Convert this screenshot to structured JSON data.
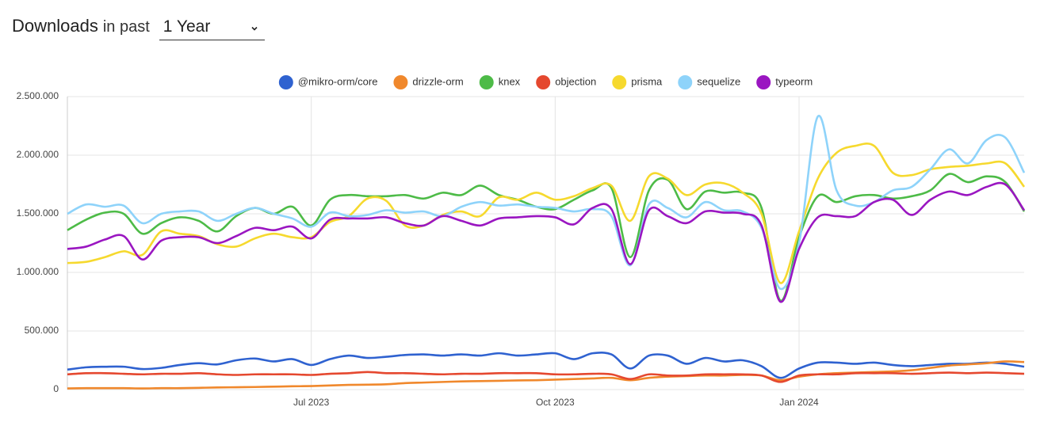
{
  "header": {
    "title": "Downloads",
    "subtitle": "in past",
    "select": "1 Year"
  },
  "chart_data": {
    "type": "line",
    "categories": [
      null,
      null,
      null,
      null,
      null,
      null,
      null,
      null,
      null,
      null,
      null,
      null,
      null,
      "Jul 2023",
      null,
      null,
      null,
      null,
      null,
      null,
      null,
      null,
      null,
      null,
      null,
      null,
      "Oct 2023",
      null,
      null,
      null,
      null,
      null,
      null,
      null,
      null,
      null,
      null,
      null,
      null,
      "Jan 2024",
      null,
      null,
      null,
      null,
      null,
      null,
      null,
      null,
      null,
      null,
      null,
      null
    ],
    "ylim": [
      0,
      2500000
    ],
    "yticks": [
      0,
      {
        "value": 500000,
        "label": "500.000"
      },
      {
        "value": 1000000,
        "label": "1.000.000"
      },
      {
        "value": 1500000,
        "label": "1.500.000"
      },
      {
        "value": 2000000,
        "label": "2.000.000"
      },
      {
        "value": 2500000,
        "label": "2.500.000"
      }
    ],
    "grid": true,
    "legend": "top",
    "series": [
      {
        "name": "@mikro-orm/core",
        "color": "#2f62d0",
        "values": [
          170000,
          190000,
          195000,
          195000,
          175000,
          185000,
          210000,
          225000,
          215000,
          250000,
          265000,
          240000,
          260000,
          210000,
          260000,
          290000,
          270000,
          280000,
          295000,
          300000,
          290000,
          300000,
          290000,
          310000,
          290000,
          300000,
          310000,
          260000,
          310000,
          300000,
          180000,
          290000,
          290000,
          220000,
          270000,
          240000,
          250000,
          200000,
          100000,
          180000,
          230000,
          230000,
          220000,
          230000,
          210000,
          200000,
          210000,
          220000,
          220000,
          230000,
          220000,
          195000
        ]
      },
      {
        "name": "drizzle-orm",
        "color": "#f0882c",
        "values": [
          10000,
          12000,
          12000,
          12000,
          10000,
          12000,
          12000,
          15000,
          18000,
          20000,
          22000,
          25000,
          28000,
          30000,
          35000,
          40000,
          42000,
          45000,
          55000,
          60000,
          65000,
          70000,
          72000,
          75000,
          78000,
          80000,
          85000,
          90000,
          95000,
          100000,
          80000,
          100000,
          110000,
          115000,
          120000,
          120000,
          125000,
          120000,
          80000,
          110000,
          130000,
          140000,
          145000,
          150000,
          155000,
          165000,
          185000,
          205000,
          215000,
          225000,
          240000,
          235000
        ]
      },
      {
        "name": "knex",
        "color": "#4dbb47",
        "values": [
          1360000,
          1450000,
          1510000,
          1500000,
          1330000,
          1420000,
          1470000,
          1440000,
          1350000,
          1480000,
          1550000,
          1500000,
          1560000,
          1400000,
          1620000,
          1660000,
          1650000,
          1650000,
          1660000,
          1630000,
          1680000,
          1660000,
          1740000,
          1660000,
          1620000,
          1560000,
          1540000,
          1620000,
          1700000,
          1720000,
          1130000,
          1700000,
          1790000,
          1540000,
          1690000,
          1680000,
          1680000,
          1550000,
          760000,
          1300000,
          1650000,
          1600000,
          1650000,
          1660000,
          1630000,
          1650000,
          1700000,
          1840000,
          1770000,
          1820000,
          1770000,
          1520000
        ]
      },
      {
        "name": "objection",
        "color": "#e5482f",
        "values": [
          130000,
          140000,
          140000,
          135000,
          130000,
          135000,
          135000,
          140000,
          130000,
          125000,
          130000,
          130000,
          130000,
          125000,
          135000,
          140000,
          150000,
          140000,
          140000,
          135000,
          130000,
          135000,
          135000,
          140000,
          140000,
          140000,
          130000,
          130000,
          135000,
          130000,
          90000,
          130000,
          120000,
          120000,
          130000,
          130000,
          130000,
          120000,
          65000,
          120000,
          130000,
          130000,
          140000,
          140000,
          140000,
          135000,
          140000,
          145000,
          140000,
          145000,
          140000,
          135000
        ]
      },
      {
        "name": "prisma",
        "color": "#f6d92e",
        "values": [
          1080000,
          1090000,
          1130000,
          1180000,
          1150000,
          1350000,
          1330000,
          1310000,
          1240000,
          1220000,
          1290000,
          1330000,
          1300000,
          1300000,
          1430000,
          1480000,
          1630000,
          1610000,
          1400000,
          1400000,
          1490000,
          1520000,
          1480000,
          1640000,
          1620000,
          1680000,
          1620000,
          1650000,
          1720000,
          1740000,
          1440000,
          1820000,
          1800000,
          1660000,
          1750000,
          1760000,
          1680000,
          1500000,
          910000,
          1350000,
          1800000,
          2020000,
          2080000,
          2080000,
          1850000,
          1830000,
          1880000,
          1900000,
          1910000,
          1930000,
          1930000,
          1730000
        ]
      },
      {
        "name": "sequelize",
        "color": "#8ed3fa",
        "values": [
          1500000,
          1580000,
          1560000,
          1570000,
          1420000,
          1500000,
          1520000,
          1520000,
          1440000,
          1500000,
          1550000,
          1500000,
          1460000,
          1390000,
          1510000,
          1480000,
          1490000,
          1530000,
          1510000,
          1520000,
          1480000,
          1560000,
          1600000,
          1570000,
          1580000,
          1560000,
          1550000,
          1520000,
          1540000,
          1480000,
          1060000,
          1580000,
          1550000,
          1470000,
          1600000,
          1530000,
          1520000,
          1380000,
          860000,
          1250000,
          2330000,
          1700000,
          1570000,
          1600000,
          1700000,
          1730000,
          1880000,
          2050000,
          1930000,
          2130000,
          2150000,
          1850000
        ]
      },
      {
        "name": "typeorm",
        "color": "#9a16c1",
        "values": [
          1200000,
          1220000,
          1280000,
          1310000,
          1110000,
          1270000,
          1300000,
          1300000,
          1250000,
          1310000,
          1380000,
          1360000,
          1390000,
          1290000,
          1450000,
          1460000,
          1460000,
          1470000,
          1420000,
          1400000,
          1480000,
          1440000,
          1400000,
          1460000,
          1470000,
          1480000,
          1470000,
          1410000,
          1550000,
          1540000,
          1070000,
          1530000,
          1480000,
          1420000,
          1520000,
          1510000,
          1500000,
          1400000,
          750000,
          1200000,
          1470000,
          1480000,
          1480000,
          1600000,
          1620000,
          1490000,
          1620000,
          1690000,
          1660000,
          1730000,
          1750000,
          1530000
        ]
      }
    ]
  }
}
